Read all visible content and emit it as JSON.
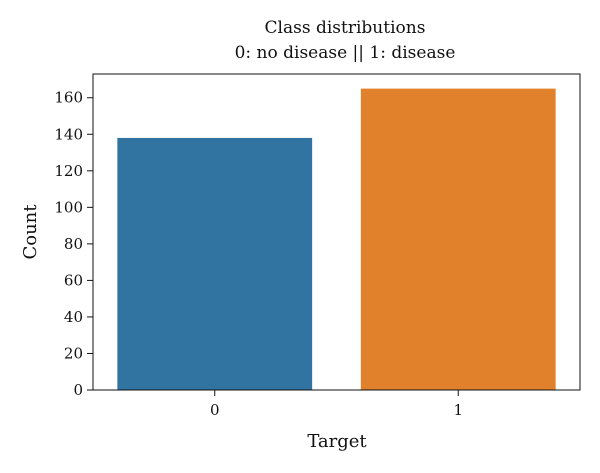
{
  "chart_data": {
    "type": "bar",
    "title": "Class distributions",
    "subtitle": "0: no disease || 1: disease",
    "xlabel": "Target",
    "ylabel": "Count",
    "categories": [
      "0",
      "1"
    ],
    "values": [
      138,
      165
    ],
    "colors": [
      "#3274a1",
      "#e1812c"
    ],
    "ylim": [
      0,
      173
    ],
    "yticks": [
      0,
      20,
      40,
      60,
      80,
      100,
      120,
      140,
      160
    ],
    "grid": false,
    "legend": "none"
  }
}
